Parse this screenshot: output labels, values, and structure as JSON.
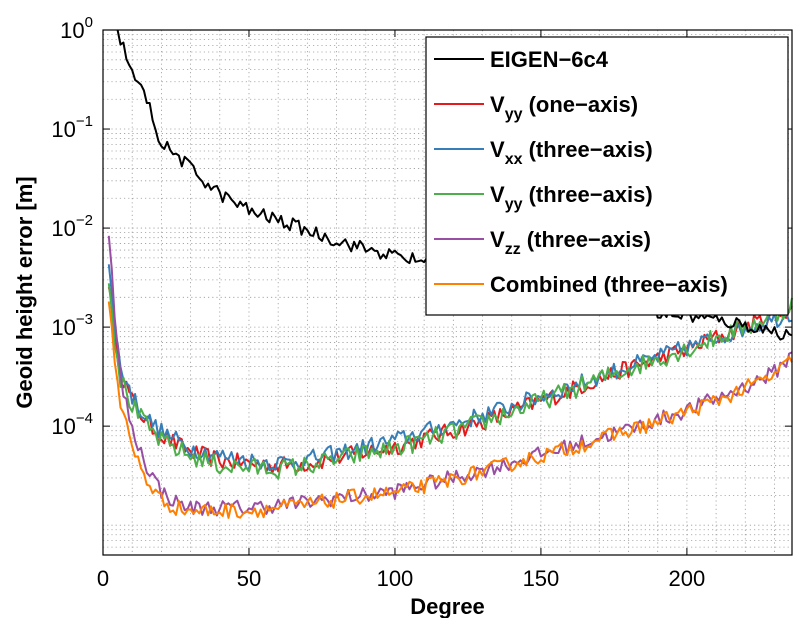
{
  "chart_data": {
    "type": "line",
    "xlabel": "Degree",
    "ylabel": "Geoid height error [m]",
    "xlim": [
      0,
      236
    ],
    "ylim": [
      5e-06,
      1
    ],
    "yscale": "log",
    "grid": true,
    "legend_position": "top-right",
    "x_ticks": [
      {
        "value": 0,
        "label": "0"
      },
      {
        "value": 50,
        "label": "50"
      },
      {
        "value": 100,
        "label": "100"
      },
      {
        "value": 150,
        "label": "150"
      },
      {
        "value": 200,
        "label": "200"
      }
    ],
    "y_ticks": [
      {
        "value": 1,
        "base": "10",
        "exp": "0"
      },
      {
        "value": 0.1,
        "base": "10",
        "exp": "−1"
      },
      {
        "value": 0.01,
        "base": "10",
        "exp": "−2"
      },
      {
        "value": 0.001,
        "base": "10",
        "exp": "−3"
      },
      {
        "value": 0.0001,
        "base": "10",
        "exp": "−4"
      }
    ],
    "series": [
      {
        "name": "EIGEN−6c4",
        "legend_main": "EIGEN−6c4",
        "legend_sub": "",
        "legend_rest": "",
        "color": "#000000",
        "points": [
          [
            5,
            1.0
          ],
          [
            8,
            0.55
          ],
          [
            10,
            0.35
          ],
          [
            15,
            0.2
          ],
          [
            20,
            0.07
          ],
          [
            25,
            0.055
          ],
          [
            30,
            0.04
          ],
          [
            40,
            0.022
          ],
          [
            50,
            0.015
          ],
          [
            60,
            0.012
          ],
          [
            70,
            0.0095
          ],
          [
            80,
            0.0075
          ],
          [
            90,
            0.0062
          ],
          [
            100,
            0.0052
          ],
          [
            110,
            0.0046
          ],
          [
            120,
            0.0038
          ],
          [
            130,
            0.0032
          ],
          [
            140,
            0.0027
          ],
          [
            150,
            0.0023
          ],
          [
            160,
            0.002
          ],
          [
            170,
            0.0018
          ],
          [
            180,
            0.0016
          ],
          [
            190,
            0.0014
          ],
          [
            200,
            0.0013
          ],
          [
            210,
            0.00118
          ],
          [
            220,
            0.00105
          ],
          [
            230,
            0.0009
          ],
          [
            236,
            0.00083
          ]
        ],
        "noise": 0.07
      },
      {
        "name": "V_yy (one−axis)",
        "legend_main": "V",
        "legend_sub": "yy",
        "legend_rest": " (one−axis)",
        "color": "#e41a1c",
        "points": [
          [
            2,
            0.003
          ],
          [
            4,
            0.0009
          ],
          [
            6,
            0.00035
          ],
          [
            10,
            0.00018
          ],
          [
            15,
            0.00011
          ],
          [
            20,
            8e-05
          ],
          [
            30,
            5.5e-05
          ],
          [
            40,
            4.5e-05
          ],
          [
            50,
            4.2e-05
          ],
          [
            60,
            4e-05
          ],
          [
            70,
            4.2e-05
          ],
          [
            80,
            4.8e-05
          ],
          [
            90,
            5.5e-05
          ],
          [
            100,
            6.2e-05
          ],
          [
            110,
            7.5e-05
          ],
          [
            120,
            9e-05
          ],
          [
            130,
            0.00011
          ],
          [
            140,
            0.00014
          ],
          [
            150,
            0.00018
          ],
          [
            160,
            0.00023
          ],
          [
            170,
            0.0003
          ],
          [
            180,
            0.00038
          ],
          [
            190,
            0.00048
          ],
          [
            200,
            0.0006
          ],
          [
            210,
            0.00078
          ],
          [
            220,
            0.001
          ],
          [
            230,
            0.0013
          ],
          [
            236,
            0.0016
          ]
        ],
        "noise": 0.09
      },
      {
        "name": "V_xx (three−axis)",
        "legend_main": "V",
        "legend_sub": "xx",
        "legend_rest": " (three−axis)",
        "color": "#377eb8",
        "points": [
          [
            2,
            0.004
          ],
          [
            4,
            0.001
          ],
          [
            6,
            0.0004
          ],
          [
            10,
            0.0002
          ],
          [
            15,
            0.00012
          ],
          [
            20,
            8.8e-05
          ],
          [
            30,
            6e-05
          ],
          [
            40,
            5e-05
          ],
          [
            50,
            4.5e-05
          ],
          [
            60,
            4.3e-05
          ],
          [
            70,
            4.6e-05
          ],
          [
            80,
            5.3e-05
          ],
          [
            90,
            6.2e-05
          ],
          [
            100,
            7.2e-05
          ],
          [
            110,
            8.8e-05
          ],
          [
            120,
            0.000105
          ],
          [
            130,
            0.00013
          ],
          [
            140,
            0.00016
          ],
          [
            150,
            0.0002
          ],
          [
            160,
            0.00025
          ],
          [
            170,
            0.00032
          ],
          [
            180,
            0.0004
          ],
          [
            190,
            0.0005
          ],
          [
            200,
            0.00062
          ],
          [
            210,
            0.00078
          ],
          [
            220,
            0.00098
          ],
          [
            230,
            0.0012
          ],
          [
            236,
            0.0014
          ]
        ],
        "noise": 0.09
      },
      {
        "name": "V_yy (three−axis)",
        "legend_main": "V",
        "legend_sub": "yy",
        "legend_rest": " (three−axis)",
        "color": "#4daf4a",
        "points": [
          [
            2,
            0.003
          ],
          [
            4,
            0.0008
          ],
          [
            6,
            0.0003
          ],
          [
            10,
            0.00016
          ],
          [
            15,
            0.0001
          ],
          [
            20,
            7e-05
          ],
          [
            30,
            5e-05
          ],
          [
            40,
            4e-05
          ],
          [
            50,
            3.8e-05
          ],
          [
            60,
            3.7e-05
          ],
          [
            70,
            4e-05
          ],
          [
            80,
            4.6e-05
          ],
          [
            90,
            5.3e-05
          ],
          [
            100,
            6e-05
          ],
          [
            110,
            7.2e-05
          ],
          [
            120,
            8.8e-05
          ],
          [
            130,
            0.00011
          ],
          [
            140,
            0.00014
          ],
          [
            150,
            0.00018
          ],
          [
            160,
            0.00023
          ],
          [
            170,
            0.0003
          ],
          [
            180,
            0.00038
          ],
          [
            190,
            0.00048
          ],
          [
            200,
            0.0006
          ],
          [
            210,
            0.00078
          ],
          [
            220,
            0.001
          ],
          [
            230,
            0.0013
          ],
          [
            236,
            0.0017
          ]
        ],
        "noise": 0.1
      },
      {
        "name": "V_zz (three−axis)",
        "legend_main": "V",
        "legend_sub": "zz",
        "legend_rest": " (three−axis)",
        "color": "#984ea3",
        "points": [
          [
            2,
            0.01
          ],
          [
            4,
            0.0012
          ],
          [
            6,
            0.0003
          ],
          [
            10,
            9e-05
          ],
          [
            15,
            4e-05
          ],
          [
            20,
            2.2e-05
          ],
          [
            25,
            1.7e-05
          ],
          [
            30,
            1.5e-05
          ],
          [
            40,
            1.5e-05
          ],
          [
            50,
            1.5e-05
          ],
          [
            60,
            1.6e-05
          ],
          [
            70,
            1.7e-05
          ],
          [
            80,
            1.9e-05
          ],
          [
            90,
            2e-05
          ],
          [
            100,
            2.2e-05
          ],
          [
            110,
            2.6e-05
          ],
          [
            120,
            3e-05
          ],
          [
            130,
            3.6e-05
          ],
          [
            140,
            4.3e-05
          ],
          [
            150,
            5.2e-05
          ],
          [
            160,
            6.3e-05
          ],
          [
            170,
            7.7e-05
          ],
          [
            180,
            9.3e-05
          ],
          [
            190,
            0.000115
          ],
          [
            200,
            0.000145
          ],
          [
            210,
            0.00019
          ],
          [
            220,
            0.00025
          ],
          [
            230,
            0.00035
          ],
          [
            236,
            0.00052
          ]
        ],
        "noise": 0.08
      },
      {
        "name": "Combined (three−axis)",
        "legend_main": "Combined (three−axis)",
        "legend_sub": "",
        "legend_rest": "",
        "color": "#ff7f00",
        "points": [
          [
            2,
            0.002
          ],
          [
            4,
            0.0005
          ],
          [
            6,
            0.00017
          ],
          [
            10,
            6e-05
          ],
          [
            15,
            2.8e-05
          ],
          [
            20,
            1.8e-05
          ],
          [
            25,
            1.5e-05
          ],
          [
            30,
            1.4e-05
          ],
          [
            40,
            1.4e-05
          ],
          [
            50,
            1.4e-05
          ],
          [
            60,
            1.5e-05
          ],
          [
            70,
            1.6e-05
          ],
          [
            80,
            1.8e-05
          ],
          [
            90,
            2e-05
          ],
          [
            100,
            2.1e-05
          ],
          [
            110,
            2.5e-05
          ],
          [
            120,
            2.9e-05
          ],
          [
            130,
            3.5e-05
          ],
          [
            140,
            4.2e-05
          ],
          [
            150,
            5e-05
          ],
          [
            160,
            6e-05
          ],
          [
            170,
            7.4e-05
          ],
          [
            180,
            9e-05
          ],
          [
            190,
            0.00011
          ],
          [
            200,
            0.00014
          ],
          [
            210,
            0.00018
          ],
          [
            220,
            0.00024
          ],
          [
            230,
            0.00033
          ],
          [
            236,
            0.00046
          ]
        ],
        "noise": 0.08
      }
    ]
  }
}
